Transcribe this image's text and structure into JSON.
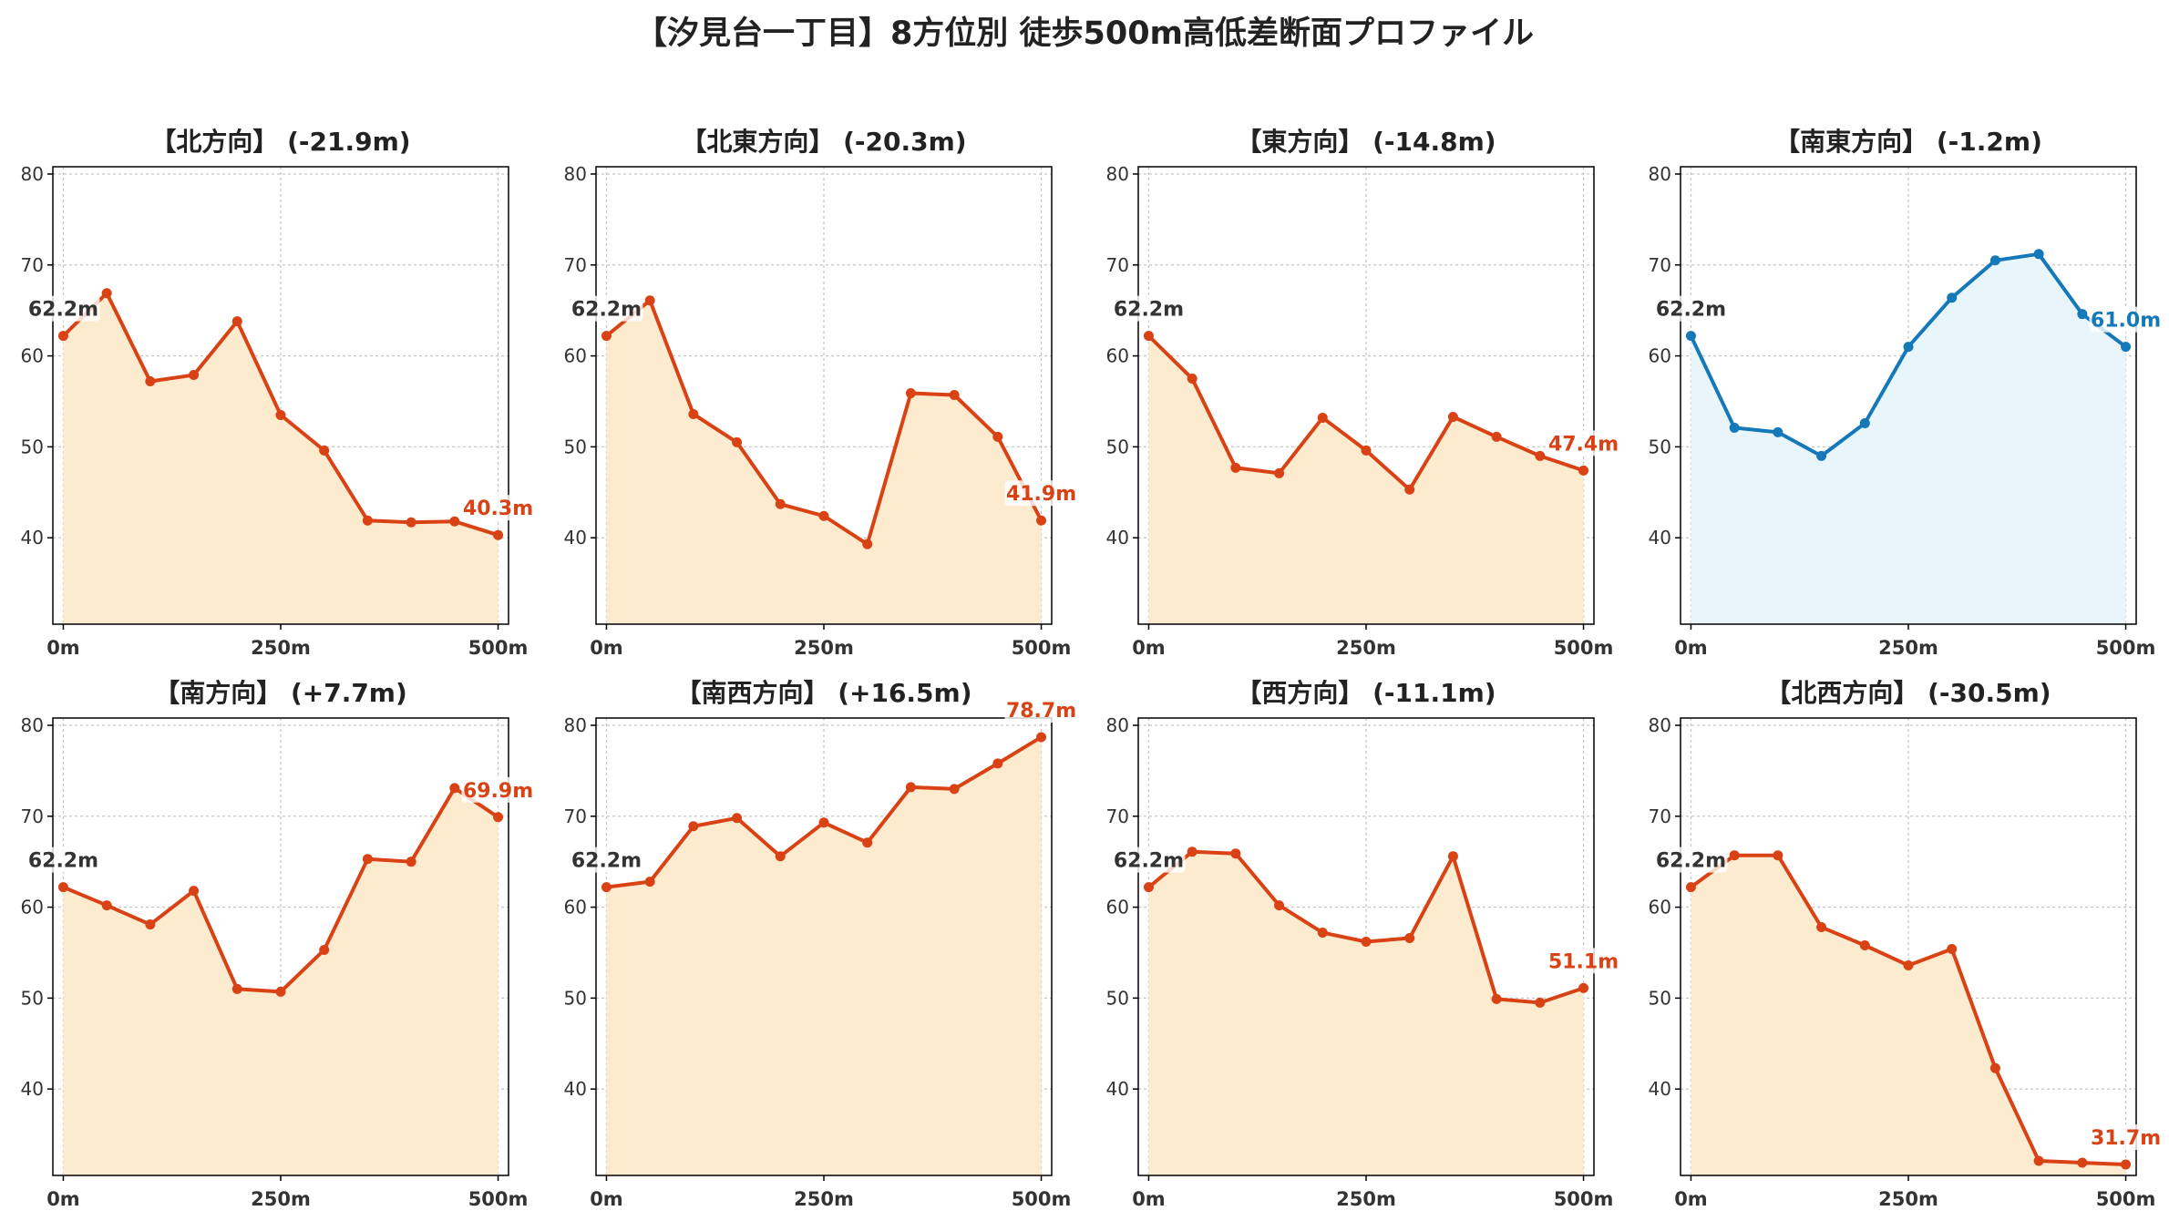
{
  "title": "【汐見台一丁目】8方位別 徒歩500m高低差断面プロファイル",
  "colors": {
    "down_line": "#d94214",
    "down_fill": "#fdebd0",
    "flat_line": "#1578b8",
    "flat_fill": "#e8f5fb",
    "start_label": "#333333",
    "grid": "#c8c8c8",
    "axis": "#000000",
    "tick_text": "#333333"
  },
  "chart_data": [
    {
      "type": "area",
      "title": "【北方向】 (-21.9m)",
      "color": "down",
      "x": [
        0,
        50,
        100,
        150,
        200,
        250,
        300,
        350,
        400,
        450,
        500
      ],
      "values": [
        62.2,
        66.9,
        57.2,
        57.9,
        63.8,
        53.5,
        49.6,
        41.9,
        41.7,
        41.8,
        40.3
      ],
      "start_label": "62.2m",
      "end_label": "40.3m",
      "xticks": [
        "0m",
        "250m",
        "500m"
      ],
      "yticks": [
        "40",
        "50",
        "60",
        "70",
        "80"
      ],
      "ylim": [
        30.5,
        80.8
      ],
      "xlim": [
        -12,
        512
      ],
      "grid": true
    },
    {
      "type": "area",
      "title": "【北東方向】 (-20.3m)",
      "color": "down",
      "x": [
        0,
        50,
        100,
        150,
        200,
        250,
        300,
        350,
        400,
        450,
        500
      ],
      "values": [
        62.2,
        66.1,
        53.6,
        50.5,
        43.7,
        42.4,
        39.3,
        55.9,
        55.7,
        51.1,
        41.9
      ],
      "start_label": "62.2m",
      "end_label": "41.9m",
      "xticks": [
        "0m",
        "250m",
        "500m"
      ],
      "yticks": [
        "40",
        "50",
        "60",
        "70",
        "80"
      ],
      "ylim": [
        30.5,
        80.8
      ],
      "xlim": [
        -12,
        512
      ],
      "grid": true
    },
    {
      "type": "area",
      "title": "【東方向】 (-14.8m)",
      "color": "down",
      "x": [
        0,
        50,
        100,
        150,
        200,
        250,
        300,
        350,
        400,
        450,
        500
      ],
      "values": [
        62.2,
        57.5,
        47.7,
        47.1,
        53.2,
        49.6,
        45.3,
        53.3,
        51.1,
        49.0,
        47.4
      ],
      "start_label": "62.2m",
      "end_label": "47.4m",
      "xticks": [
        "0m",
        "250m",
        "500m"
      ],
      "yticks": [
        "40",
        "50",
        "60",
        "70",
        "80"
      ],
      "ylim": [
        30.5,
        80.8
      ],
      "xlim": [
        -12,
        512
      ],
      "grid": true
    },
    {
      "type": "area",
      "title": "【南東方向】 (-1.2m)",
      "color": "flat",
      "x": [
        0,
        50,
        100,
        150,
        200,
        250,
        300,
        350,
        400,
        450,
        500
      ],
      "values": [
        62.2,
        52.1,
        51.6,
        49.0,
        52.6,
        61.0,
        66.4,
        70.5,
        71.2,
        64.6,
        61.0
      ],
      "start_label": "62.2m",
      "end_label": "61.0m",
      "xticks": [
        "0m",
        "250m",
        "500m"
      ],
      "yticks": [
        "40",
        "50",
        "60",
        "70",
        "80"
      ],
      "ylim": [
        30.5,
        80.8
      ],
      "xlim": [
        -12,
        512
      ],
      "grid": true
    },
    {
      "type": "area",
      "title": "【南方向】 (+7.7m)",
      "color": "down",
      "x": [
        0,
        50,
        100,
        150,
        200,
        250,
        300,
        350,
        400,
        450,
        500
      ],
      "values": [
        62.2,
        60.2,
        58.1,
        61.8,
        51.0,
        50.7,
        55.3,
        65.3,
        65.0,
        73.1,
        69.9
      ],
      "start_label": "62.2m",
      "end_label": "69.9m",
      "xticks": [
        "0m",
        "250m",
        "500m"
      ],
      "yticks": [
        "40",
        "50",
        "60",
        "70",
        "80"
      ],
      "ylim": [
        30.5,
        80.8
      ],
      "xlim": [
        -12,
        512
      ],
      "grid": true
    },
    {
      "type": "area",
      "title": "【南西方向】 (+16.5m)",
      "color": "down",
      "x": [
        0,
        50,
        100,
        150,
        200,
        250,
        300,
        350,
        400,
        450,
        500
      ],
      "values": [
        62.2,
        62.8,
        68.9,
        69.8,
        65.6,
        69.3,
        67.1,
        73.2,
        73.0,
        75.8,
        78.7
      ],
      "start_label": "62.2m",
      "end_label": "78.7m",
      "xticks": [
        "0m",
        "250m",
        "500m"
      ],
      "yticks": [
        "40",
        "50",
        "60",
        "70",
        "80"
      ],
      "ylim": [
        30.5,
        80.8
      ],
      "xlim": [
        -12,
        512
      ],
      "grid": true
    },
    {
      "type": "area",
      "title": "【西方向】 (-11.1m)",
      "color": "down",
      "x": [
        0,
        50,
        100,
        150,
        200,
        250,
        300,
        350,
        400,
        450,
        500
      ],
      "values": [
        62.2,
        66.1,
        65.9,
        60.2,
        57.2,
        56.2,
        56.6,
        65.6,
        49.9,
        49.5,
        51.1
      ],
      "start_label": "62.2m",
      "end_label": "51.1m",
      "xticks": [
        "0m",
        "250m",
        "500m"
      ],
      "yticks": [
        "40",
        "50",
        "60",
        "70",
        "80"
      ],
      "ylim": [
        30.5,
        80.8
      ],
      "xlim": [
        -12,
        512
      ],
      "grid": true
    },
    {
      "type": "area",
      "title": "【北西方向】 (-30.5m)",
      "color": "down",
      "x": [
        0,
        50,
        100,
        150,
        200,
        250,
        300,
        350,
        400,
        450,
        500
      ],
      "values": [
        62.2,
        65.7,
        65.7,
        57.8,
        55.8,
        53.6,
        55.4,
        42.3,
        32.1,
        31.9,
        31.7
      ],
      "start_label": "62.2m",
      "end_label": "31.7m",
      "xticks": [
        "0m",
        "250m",
        "500m"
      ],
      "yticks": [
        "40",
        "50",
        "60",
        "70",
        "80"
      ],
      "ylim": [
        30.5,
        80.8
      ],
      "xlim": [
        -12,
        512
      ],
      "grid": true
    }
  ]
}
